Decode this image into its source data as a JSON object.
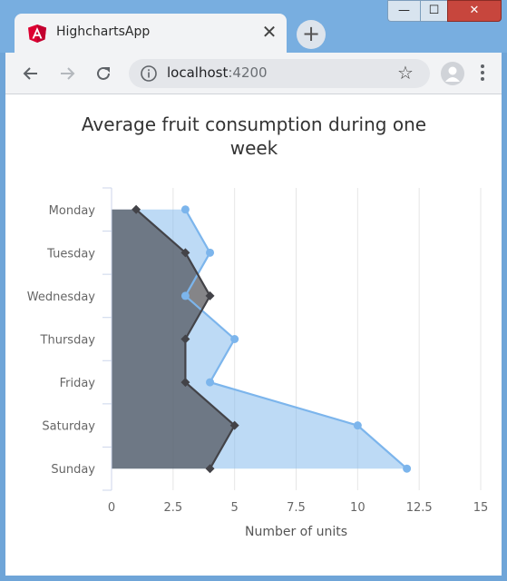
{
  "browser": {
    "tab_title": "HighchartsApp",
    "tab_close_glyph": "✕",
    "new_tab_glyph": "+",
    "url_host": "localhost",
    "url_port": ":4200",
    "window_controls": {
      "minimize": "—",
      "maximize": "☐",
      "close": "✕"
    },
    "icons": [
      "angular-logo-icon",
      "back-arrow-icon",
      "forward-arrow-icon",
      "reload-icon",
      "info-icon",
      "star-icon",
      "profile-icon",
      "menu-dots-icon"
    ]
  },
  "chart_data": {
    "type": "area",
    "inverted": true,
    "title": "Average fruit consumption during one week",
    "xlabel": "",
    "ylabel": "Number of units",
    "categories": [
      "Monday",
      "Tuesday",
      "Wednesday",
      "Thursday",
      "Friday",
      "Saturday",
      "Sunday"
    ],
    "yticks": [
      "0",
      "2.5",
      "5",
      "7.5",
      "10",
      "12.5",
      "15"
    ],
    "ylim": [
      0,
      15
    ],
    "grid": true,
    "legend": "none",
    "series": [
      {
        "values": [
          3,
          4,
          3,
          5,
          4,
          10,
          12
        ],
        "color": "#7cb5ec",
        "marker": "circle"
      },
      {
        "values": [
          1,
          3,
          4,
          3,
          3,
          5,
          4
        ],
        "color": "#434348",
        "marker": "diamond"
      }
    ]
  }
}
